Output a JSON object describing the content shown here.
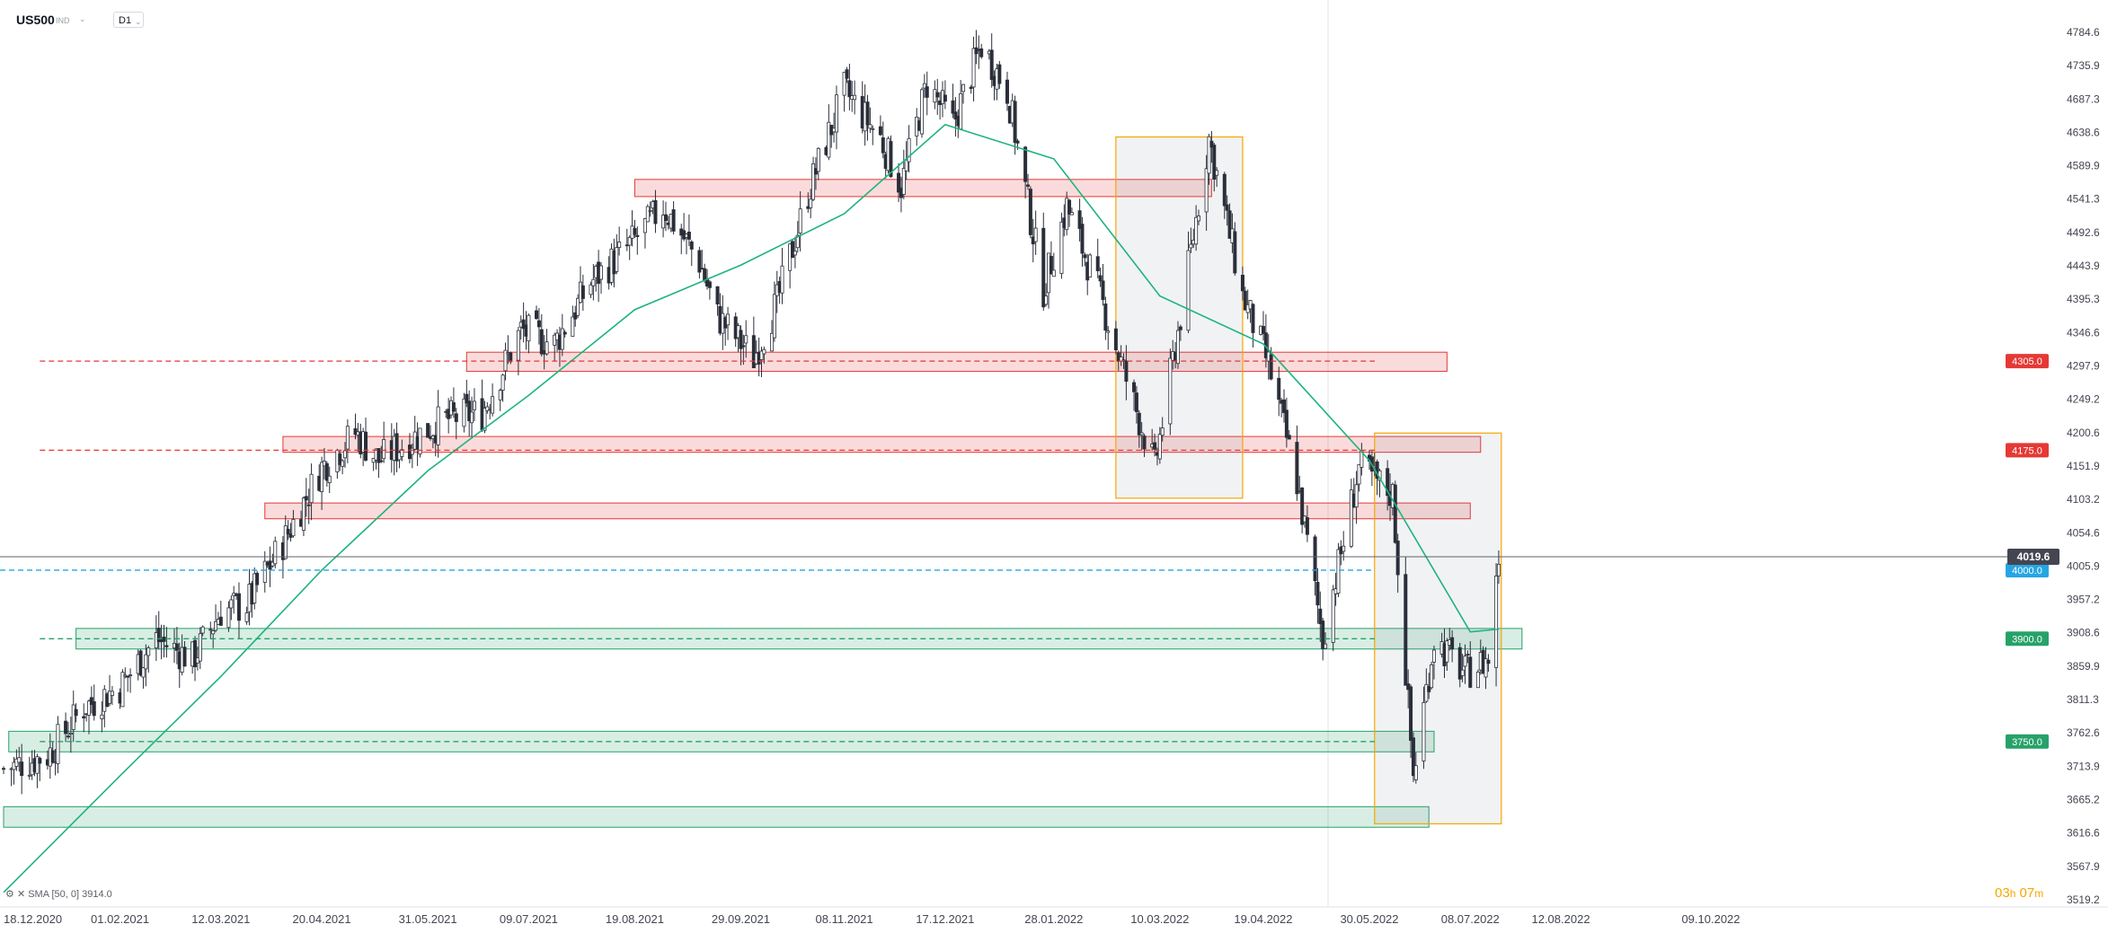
{
  "toolbar": {
    "symbol": "US500",
    "indicator_badge": "IND",
    "timeframe": "D1"
  },
  "colors": {
    "up": "#ffffff",
    "down": "#2a2e39",
    "wick": "#2a2e39",
    "resistance": "#e53935",
    "support": "#26a269",
    "sma": "#1db380",
    "current": "#26a5e4",
    "highlight_box": "#f7a600"
  },
  "sma_legend": "SMA [50, 0] 3914.0",
  "timer": {
    "hours": "03",
    "h": "h",
    "minutes": "07",
    "m": "m"
  },
  "chart_data": {
    "type": "candlestick",
    "y_ticks": [
      "4784.6",
      "4735.9",
      "4687.3",
      "4638.6",
      "4589.9",
      "4541.3",
      "4492.6",
      "4443.9",
      "4395.3",
      "4346.6",
      "4297.9",
      "4249.2",
      "4200.6",
      "4151.9",
      "4103.2",
      "4054.6",
      "4005.9",
      "3957.2",
      "3908.6",
      "3859.9",
      "3811.3",
      "3762.6",
      "3713.9",
      "3665.2",
      "3616.6",
      "3567.9",
      "3519.2"
    ],
    "ylim": [
      3519.2,
      4784.6
    ],
    "x_ticks": [
      "18.12.2020",
      "01.02.2021",
      "12.03.2021",
      "20.04.2021",
      "31.05.2021",
      "09.07.2021",
      "19.08.2021",
      "29.09.2021",
      "08.11.2021",
      "17.12.2021",
      "28.01.2022",
      "10.03.2022",
      "19.04.2022",
      "30.05.2022",
      "08.07.2022",
      "12.08.2022",
      "09.10.2022"
    ],
    "current_price": "4019.6",
    "levels": [
      {
        "value": 4305.0,
        "label": "4305.0",
        "kind": "resistance"
      },
      {
        "value": 4175.0,
        "label": "4175.0",
        "kind": "resistance"
      },
      {
        "value": 4000.0,
        "label": "4000.0",
        "kind": "current"
      },
      {
        "value": 3900.0,
        "label": "3900.0",
        "kind": "support"
      },
      {
        "value": 3750.0,
        "label": "3750.0",
        "kind": "support"
      }
    ],
    "zones": [
      {
        "kind": "resistance",
        "from": "2021-08-19",
        "to": "2022-03-30",
        "low": 4545,
        "high": 4570
      },
      {
        "kind": "resistance",
        "from": "2021-06-15",
        "to": "2022-06-29",
        "low": 4290,
        "high": 4318
      },
      {
        "kind": "resistance",
        "from": "2021-04-05",
        "to": "2022-07-12",
        "low": 4172,
        "high": 4195
      },
      {
        "kind": "resistance",
        "from": "2021-03-29",
        "to": "2022-07-08",
        "low": 4075,
        "high": 4098
      },
      {
        "kind": "support",
        "from": "2021-01-15",
        "to": "2022-07-28",
        "low": 3885,
        "high": 3915
      },
      {
        "kind": "support",
        "from": "2020-12-20",
        "to": "2022-06-24",
        "low": 3735,
        "high": 3765
      },
      {
        "kind": "support",
        "from": "2020-12-18",
        "to": "2022-06-22",
        "low": 3625,
        "high": 3655
      }
    ],
    "boxes": [
      {
        "from": "2022-02-21",
        "to": "2022-04-11",
        "low": 4105,
        "high": 4632
      },
      {
        "from": "2022-06-01",
        "to": "2022-07-20",
        "low": 3630,
        "high": 4200
      }
    ],
    "series": [
      {
        "name": "US500",
        "dates": [
          "2020-12-18",
          "2021-01-04",
          "2021-01-18",
          "2021-02-01",
          "2021-02-15",
          "2021-03-01",
          "2021-03-12",
          "2021-03-22",
          "2021-04-05",
          "2021-04-20",
          "2021-05-03",
          "2021-05-12",
          "2021-05-24",
          "2021-06-07",
          "2021-06-21",
          "2021-07-06",
          "2021-07-19",
          "2021-08-02",
          "2021-08-16",
          "2021-08-30",
          "2021-09-13",
          "2021-09-20",
          "2021-10-04",
          "2021-10-13",
          "2021-10-25",
          "2021-11-08",
          "2021-11-22",
          "2021-11-30",
          "2021-12-10",
          "2021-12-20",
          "2021-12-31",
          "2022-01-10",
          "2022-01-24",
          "2022-02-02",
          "2022-02-14",
          "2022-02-24",
          "2022-03-08",
          "2022-03-18",
          "2022-03-29",
          "2022-04-11",
          "2022-04-21",
          "2022-05-02",
          "2022-05-12",
          "2022-05-26",
          "2022-06-08",
          "2022-06-16",
          "2022-06-24",
          "2022-07-06",
          "2022-07-15",
          "2022-07-19"
        ],
        "close": [
          3710,
          3730,
          3800,
          3830,
          3900,
          3870,
          3940,
          3950,
          4040,
          4150,
          4200,
          4160,
          4190,
          4220,
          4230,
          4350,
          4330,
          4420,
          4470,
          4530,
          4450,
          4370,
          4310,
          4390,
          4550,
          4700,
          4630,
          4560,
          4710,
          4650,
          4766,
          4700,
          4410,
          4530,
          4410,
          4290,
          4150,
          4370,
          4630,
          4400,
          4300,
          4130,
          3900,
          4150,
          4110,
          3700,
          3900,
          3850,
          3870,
          4019.6
        ]
      },
      {
        "name": "SMA",
        "dates": [
          "2020-12-18",
          "2021-02-01",
          "2021-03-12",
          "2021-04-20",
          "2021-05-31",
          "2021-07-09",
          "2021-08-19",
          "2021-09-29",
          "2021-11-08",
          "2021-12-17",
          "2022-01-28",
          "2022-03-10",
          "2022-04-19",
          "2022-05-30",
          "2022-07-08",
          "2022-07-19"
        ],
        "values": [
          3530,
          3700,
          3845,
          4000,
          4145,
          4255,
          4380,
          4445,
          4520,
          4650,
          4600,
          4400,
          4330,
          4160,
          3910,
          3914
        ]
      }
    ]
  }
}
